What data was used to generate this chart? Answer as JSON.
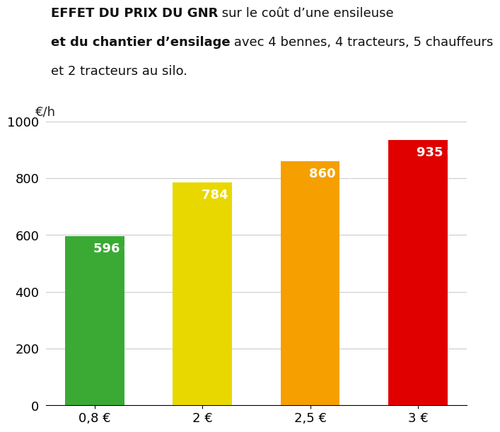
{
  "categories": [
    "0,8 €",
    "2 €",
    "2,5 €",
    "3 €"
  ],
  "values": [
    596,
    784,
    860,
    935
  ],
  "bar_colors": [
    "#3aaa35",
    "#e8d800",
    "#f5a000",
    "#e00000"
  ],
  "bar_labels": [
    "596 €/h",
    "784 €/h",
    "860 €/h",
    "935 €/h"
  ],
  "label_color": "#ffffff",
  "ylabel": "€/h",
  "ylim": [
    0,
    1000
  ],
  "yticks": [
    0,
    200,
    400,
    600,
    800,
    1000
  ],
  "title_line1_bold": "EFFET DU PRIX DU GNR",
  "title_line1_normal": " sur le coût d’une ensileuse",
  "title_line2_bold": "et du chantier d’ensilage",
  "title_line2_normal": " avec 4 bennes, 4 tracteurs, 5 chauffeurs",
  "title_line3": "et 2 tracteurs au silo.",
  "background_color": "#ffffff",
  "grid_color": "#cccccc",
  "bar_label_fontsize": 13,
  "axis_label_fontsize": 13,
  "tick_fontsize": 13,
  "title_fontsize": 13
}
